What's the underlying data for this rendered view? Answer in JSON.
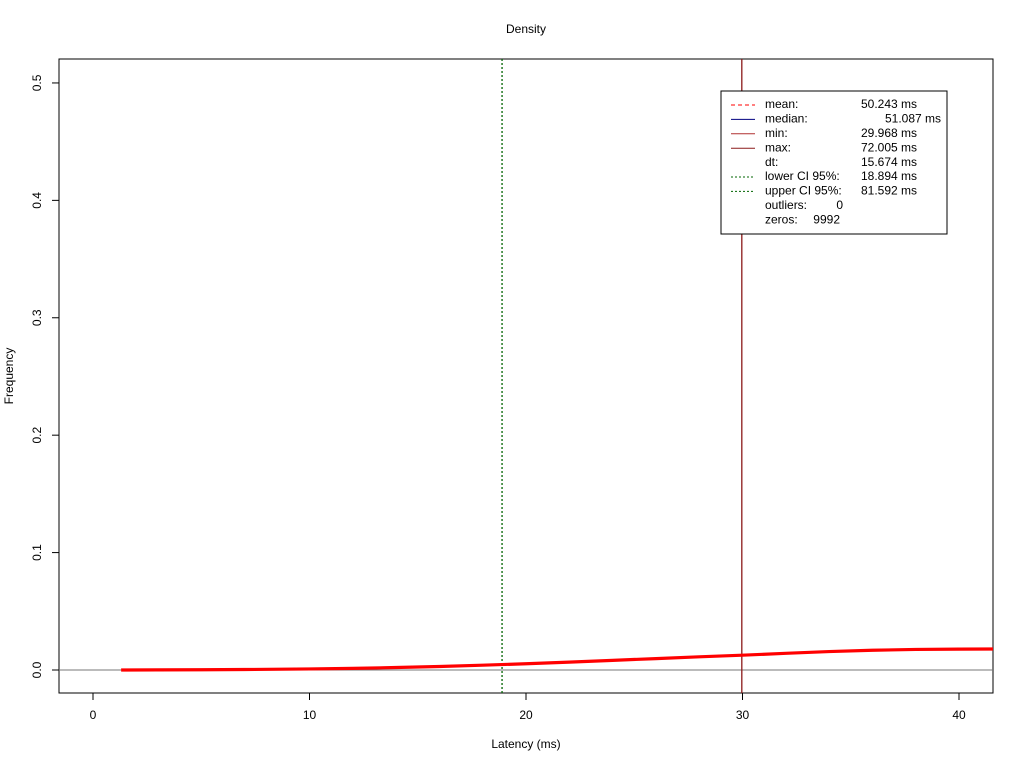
{
  "chart_data": {
    "type": "line",
    "title": "Density",
    "x_label": "Latency (ms)",
    "y_label": "Frequency",
    "xlim": [
      -1.57,
      41.57
    ],
    "ylim": [
      -0.0196,
      0.5204
    ],
    "xticks": [
      0,
      10,
      20,
      30,
      40
    ],
    "yticks": [
      {
        "value": 0,
        "label": "0.0"
      },
      0.1,
      0.2,
      0.3,
      0.4,
      0.5
    ],
    "baseline": {
      "value": 0,
      "color": "#777777"
    },
    "x": [
      1.3,
      3,
      5,
      7,
      10,
      12,
      14,
      16,
      18,
      20,
      22,
      24,
      26,
      28,
      30,
      32,
      34,
      36,
      38,
      40,
      41.57
    ],
    "series": [
      {
        "name": "Density",
        "color": "#ff0000",
        "values": [
          0,
          0.0001,
          0.0002,
          0.0004,
          0.0009,
          0.0014,
          0.0021,
          0.003,
          0.0041,
          0.0053,
          0.0067,
          0.0082,
          0.0097,
          0.0112,
          0.0126,
          0.0142,
          0.0157,
          0.0168,
          0.0175,
          0.0178,
          0.0179
        ]
      }
    ],
    "vlines": [
      {
        "name": "lower CI 95%",
        "x": 18.894,
        "color": "#006400",
        "style": "dotted"
      },
      {
        "name": "min",
        "x": 29.968,
        "color": "#8b1a1a",
        "style": "solid"
      }
    ],
    "legend": [
      {
        "label": "mean:",
        "value": "50.243 ms",
        "color": "#ff0000",
        "style": "dashed"
      },
      {
        "label": "median:",
        "value": "51.087 ms",
        "color": "#000080",
        "style": "solid"
      },
      {
        "label": "min:",
        "value": "29.968 ms",
        "color": "#b03030",
        "style": "solid"
      },
      {
        "label": "max:",
        "value": "72.005 ms",
        "color": "#8b1a1a",
        "style": "solid"
      },
      {
        "label": "dt:",
        "value": "15.674 ms"
      },
      {
        "label": "lower CI 95%:",
        "value": "18.894 ms",
        "color": "#006400",
        "style": "dotted"
      },
      {
        "label": "upper CI 95%:",
        "value": "81.592 ms",
        "color": "#006400",
        "style": "dotted"
      },
      {
        "label": "outliers:",
        "value": "0"
      },
      {
        "label": "zeros:",
        "value": "9992"
      }
    ]
  }
}
